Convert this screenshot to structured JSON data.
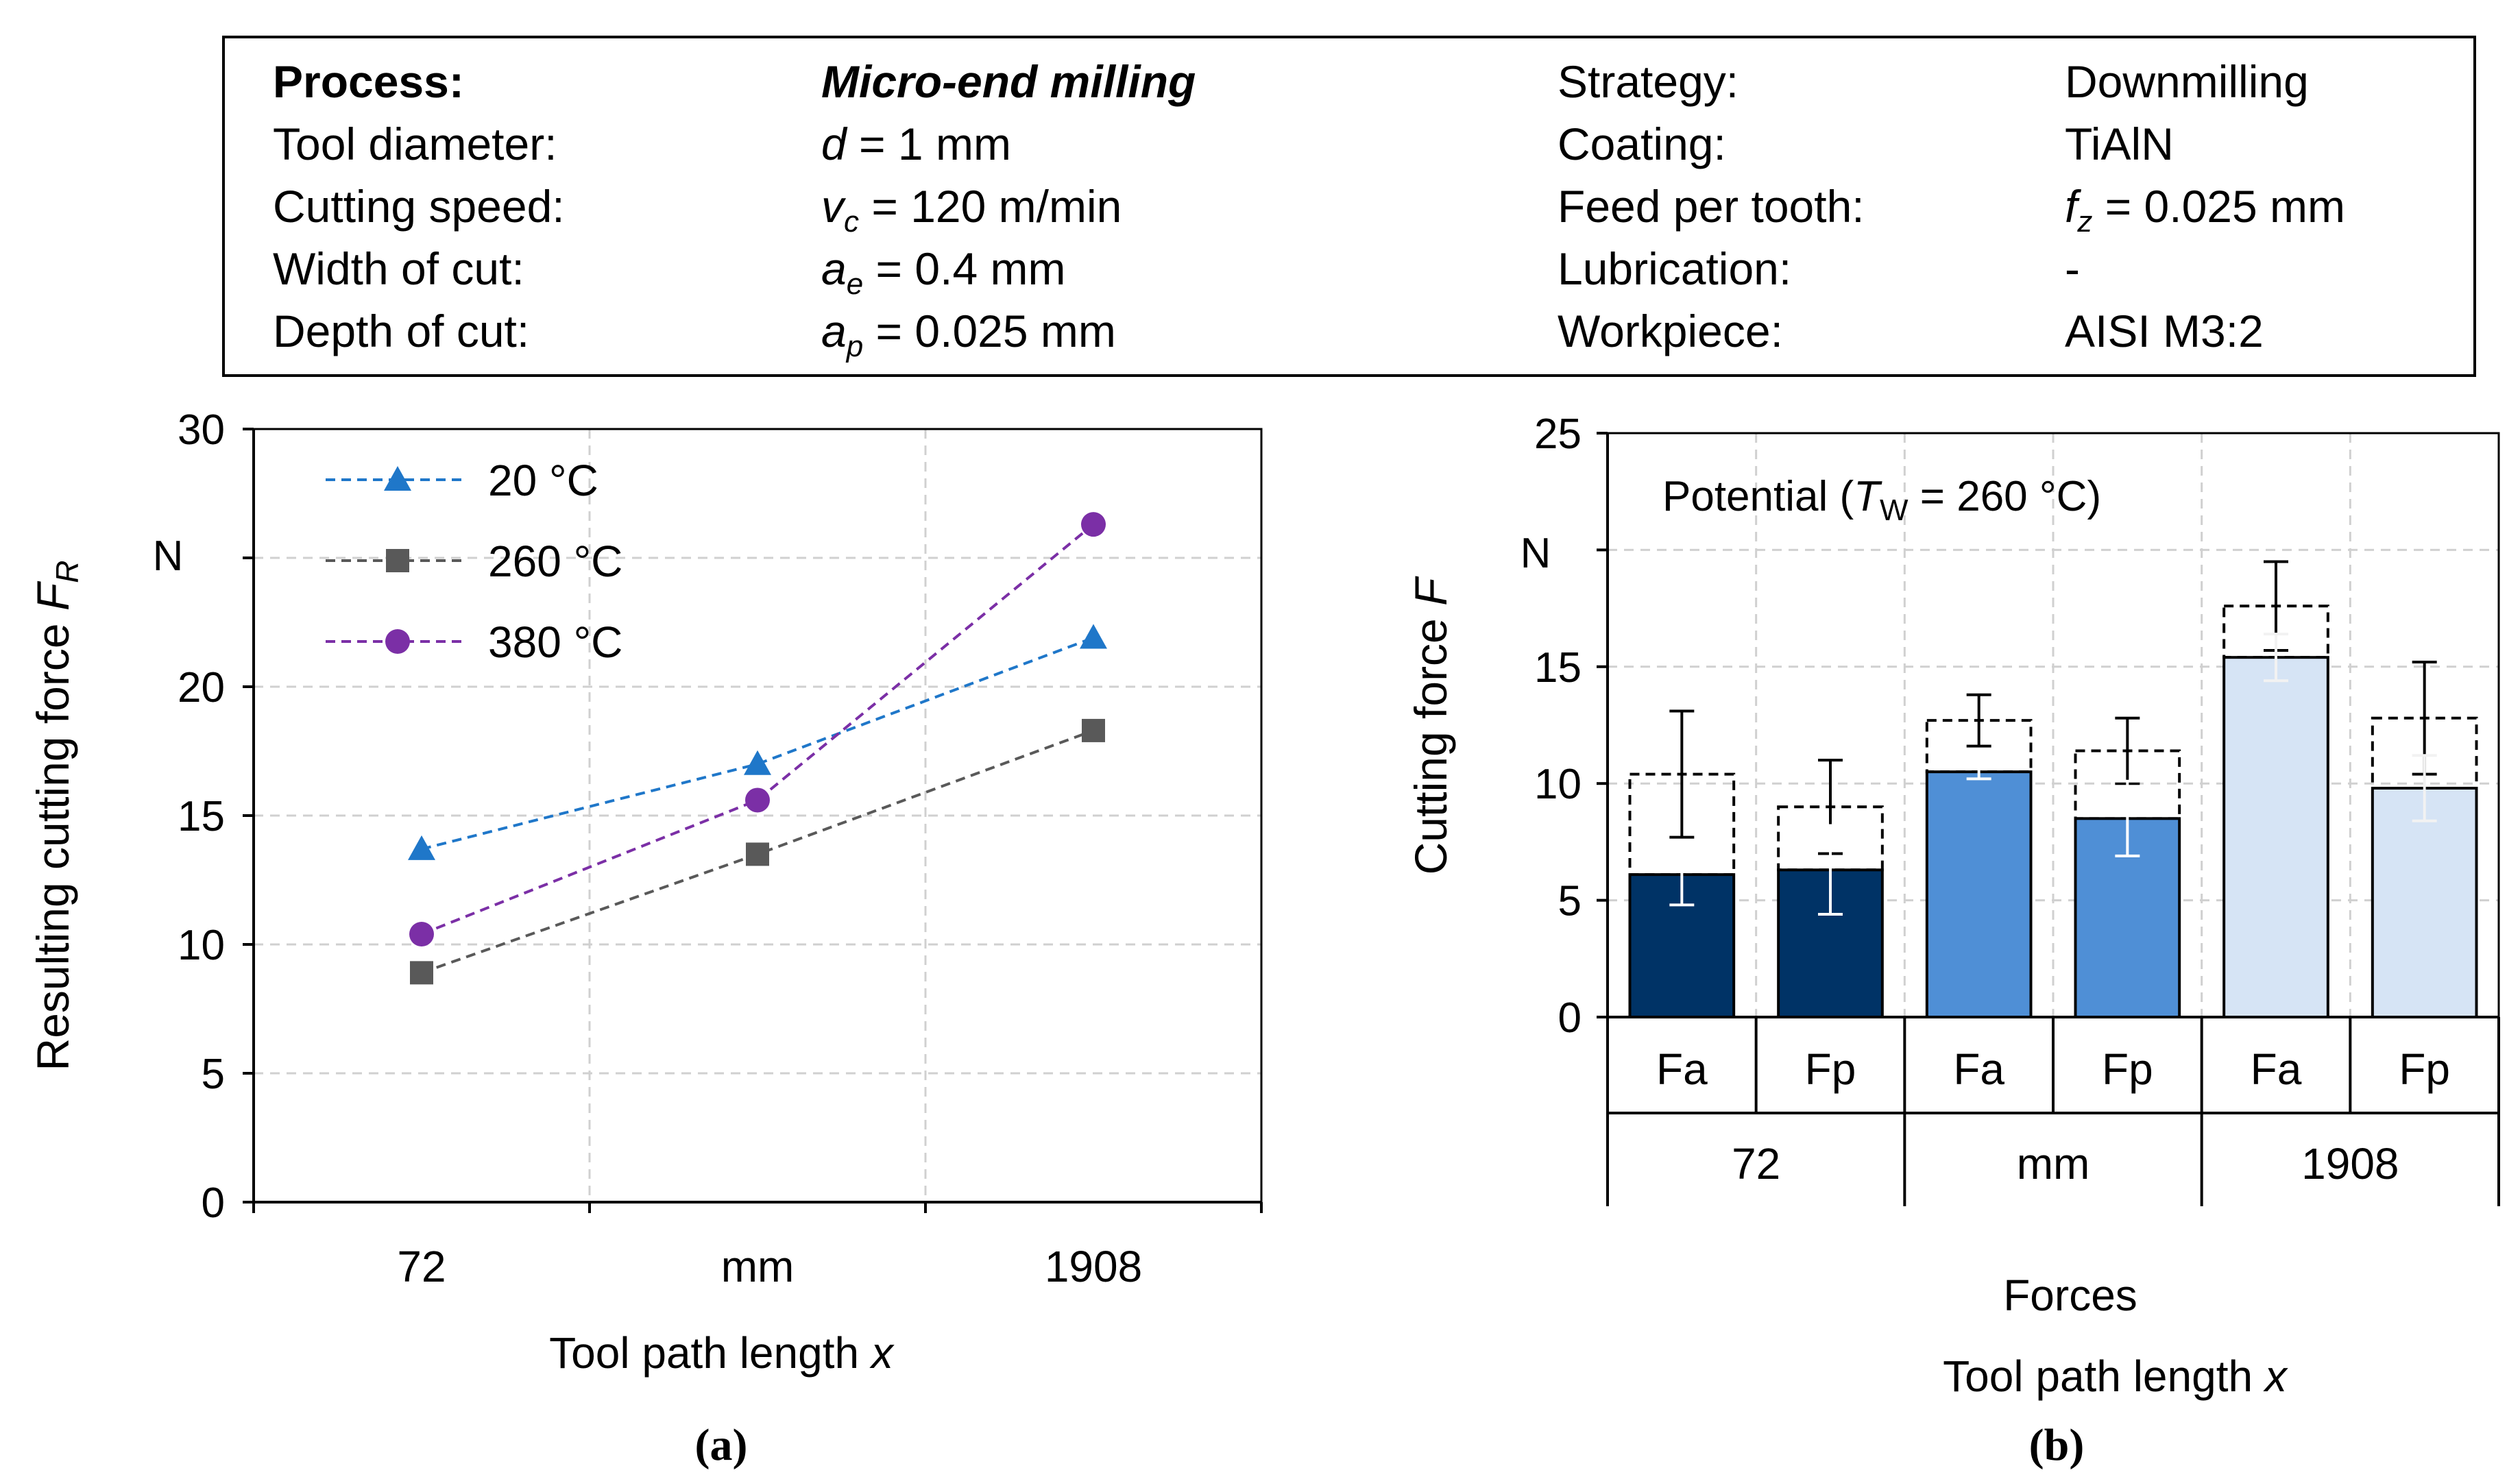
{
  "process_table": {
    "rows": [
      {
        "label": "Process:",
        "value_pre": "",
        "value_sub": "",
        "value_post": "Micro-end milling",
        "label2": "Strategy:",
        "value2_pre": "",
        "value2_sub": "",
        "value2_post": "Downmilling"
      },
      {
        "label": "Tool diameter:",
        "value_pre": "d",
        "value_sub": "",
        "value_post": " = 1 mm",
        "label2": "Coating:",
        "value2_pre": "",
        "value2_sub": "",
        "value2_post": "TiAlN"
      },
      {
        "label": "Cutting speed:",
        "value_pre": "v",
        "value_sub": "c",
        "value_post": " = 120 m/min",
        "label2": "Feed per tooth:",
        "value2_pre": "f",
        "value2_sub": "z",
        "value2_post": " = 0.025 mm"
      },
      {
        "label": "Width of cut:",
        "value_pre": "a",
        "value_sub": "e",
        "value_post": " = 0.4 mm",
        "label2": "Lubrication:",
        "value2_pre": "",
        "value2_sub": "",
        "value2_post": "-"
      },
      {
        "label": "Depth of cut:",
        "value_pre": "a",
        "value_sub": "p",
        "value_post": " = 0.025 mm",
        "label2": "Workpiece:",
        "value2_pre": "",
        "value2_sub": "",
        "value2_post": "AISI M3:2"
      }
    ]
  },
  "panel_labels": {
    "a": "(a)",
    "b": "(b)"
  },
  "chart_data": [
    {
      "type": "line",
      "ylabel_text": "Resulting cutting force ",
      "ylabel_var": "F",
      "ylabel_sub": "R",
      "y_unit": "N",
      "xlabel_text": "Tool path length ",
      "xlabel_var": "x",
      "categories": [
        "72",
        "mm",
        "1908"
      ],
      "ylim": [
        0,
        30
      ],
      "yticks": [
        0,
        5,
        10,
        15,
        20,
        30
      ],
      "grid": true,
      "legend_position": "top-left",
      "series": [
        {
          "name": "20 °C",
          "values": [
            13.7,
            17.0,
            21.9
          ],
          "marker": "triangle",
          "color": "#1f77c9"
        },
        {
          "name": "260 °C",
          "values": [
            8.9,
            13.5,
            18.3
          ],
          "marker": "square",
          "color": "#595959"
        },
        {
          "name": "380 °C",
          "values": [
            10.4,
            15.6,
            26.3
          ],
          "marker": "circle",
          "color": "#7b2fa6"
        }
      ]
    },
    {
      "type": "bar",
      "ylabel_text": "Cutting force ",
      "ylabel_var": "F",
      "y_unit": "N",
      "ylim": [
        0,
        25
      ],
      "yticks": [
        0,
        5,
        10,
        15,
        25
      ],
      "grid": true,
      "annotation_text": "Potential (",
      "annotation_var": "T",
      "annotation_sub": "W",
      "annotation_post": " = 260 °C)",
      "xlabel_top": "Forces",
      "xlabel_text": "Tool path length ",
      "xlabel_var": "x",
      "groups": [
        "72",
        "mm",
        "1908"
      ],
      "categories": [
        "Fa",
        "Fp",
        "Fa",
        "Fp",
        "Fa",
        "Fp"
      ],
      "values": [
        6.1,
        6.3,
        10.5,
        8.5,
        15.4,
        9.8
      ],
      "errors": [
        1.3,
        1.9,
        0.3,
        1.6,
        1.0,
        1.4
      ],
      "potential": [
        10.4,
        9.0,
        12.7,
        11.4,
        17.6,
        12.8
      ],
      "potential_errors": [
        2.7,
        2.0,
        1.1,
        1.4,
        1.9,
        2.4
      ],
      "colors": [
        "#003366",
        "#003366",
        "#4f8fd6",
        "#4f8fd6",
        "#d6e4f5",
        "#d6e4f5"
      ]
    }
  ]
}
